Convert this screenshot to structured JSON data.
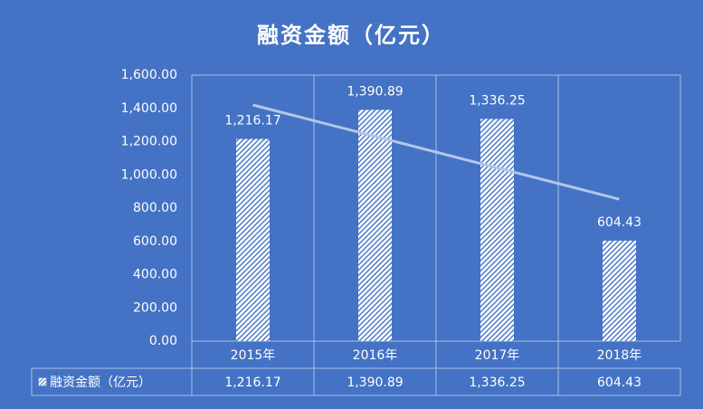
{
  "chart_data": {
    "type": "bar",
    "title": "融资金额（亿元）",
    "categories": [
      "2015年",
      "2016年",
      "2017年",
      "2018年"
    ],
    "series": [
      {
        "name": "融资金额（亿元）",
        "color": "#ffffff",
        "values": [
          1216.17,
          1390.89,
          1336.25,
          604.43
        ],
        "value_labels": [
          "1,216.17",
          "1,390.89",
          "1,336.25",
          "604.43"
        ]
      }
    ],
    "ylim": [
      0,
      1600
    ],
    "yticks": [
      {
        "value": 0,
        "label": "0.00"
      },
      {
        "value": 200,
        "label": "200.00"
      },
      {
        "value": 400,
        "label": "400.00"
      },
      {
        "value": 600,
        "label": "600.00"
      },
      {
        "value": 800,
        "label": "800.00"
      },
      {
        "value": 1000,
        "label": "1,000.00"
      },
      {
        "value": 1200,
        "label": "1,200.00"
      },
      {
        "value": 1400,
        "label": "1,400.00"
      },
      {
        "value": 1600,
        "label": "1,600.00"
      }
    ],
    "trendline": "linear",
    "data_table": true
  }
}
